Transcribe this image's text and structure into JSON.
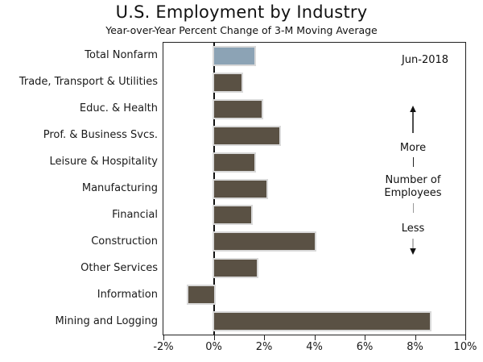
{
  "header": {
    "title": "U.S. Employment by Industry",
    "subtitle": "Year-over-Year Percent Change of 3-M Moving Average"
  },
  "chart_data": {
    "type": "bar",
    "orientation": "horizontal",
    "title": "U.S. Employment by Industry",
    "subtitle": "Year-over-Year Percent Change of 3-M Moving Average",
    "unit": "percent",
    "categories": [
      "Total Nonfarm",
      "Trade, Transport & Utilities",
      "Educ. & Health",
      "Prof. & Business Svcs.",
      "Leisure & Hospitality",
      "Manufacturing",
      "Financial",
      "Construction",
      "Other Services",
      "Information",
      "Mining and Logging"
    ],
    "values": [
      1.6,
      1.1,
      1.9,
      2.6,
      1.6,
      2.1,
      1.5,
      4.0,
      1.7,
      -1.0,
      8.6
    ],
    "xlim": [
      -2,
      10
    ],
    "x_tick_values": [
      -2,
      0,
      2,
      4,
      6,
      8,
      10
    ],
    "x_tick_labels": [
      "-2%",
      "0%",
      "2%",
      "4%",
      "6%",
      "8%",
      "10%"
    ],
    "grid": "off",
    "legend": "none",
    "highlight_index": 0,
    "colors": {
      "bar_default": "#5a5144",
      "bar_highlight": "#8ca3b5",
      "bar_outline": "#d9d9d9",
      "axis": "#222222"
    },
    "annotations": {
      "date_label": "Jun-2018",
      "axis_note": {
        "more": "More",
        "subject_line1": "Number of",
        "subject_line2": "Employees",
        "less": "Less"
      }
    }
  }
}
